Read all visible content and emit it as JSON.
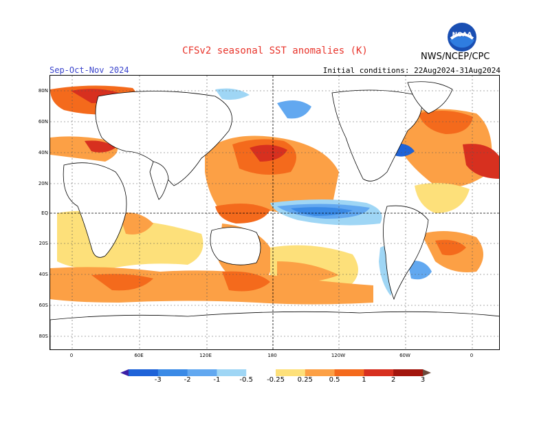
{
  "title": "CFSv2 seasonal SST anomalies (K)",
  "season": "Sep-Oct-Nov 2024",
  "initial_conditions": "Initial conditions: 22Aug2024-31Aug2024",
  "organization": "NWS/NCEP/CPC",
  "logo_text": "NOAA",
  "lat_labels": [
    "80N",
    "60N",
    "40N",
    "20N",
    "EQ",
    "20S",
    "40S",
    "60S",
    "80S"
  ],
  "lon_labels": [
    "0",
    "60E",
    "120E",
    "180",
    "120W",
    "60W",
    "0"
  ],
  "colorbar": {
    "levels": [
      "-3",
      "-2",
      "-1",
      "-0.5",
      "-0.25",
      "0.25",
      "0.5",
      "1",
      "2",
      "3"
    ],
    "colors": [
      "#3b1fa5",
      "#1f63d8",
      "#3a8ae6",
      "#62a8f0",
      "#9fd6f5",
      "#ffffff",
      "#fde07a",
      "#fca045",
      "#f46a1c",
      "#d7301f",
      "#a3160e",
      "#6b4a3c"
    ]
  },
  "anomaly_colors": {
    "strong_warm": "#cf2a14",
    "warm": "#f5761f",
    "weak_warm": "#fcb14a",
    "slight_warm": "#fde68a",
    "slight_cool": "#bfe5f8",
    "cool": "#62a8f0",
    "strong_cool": "#2f74dc"
  }
}
